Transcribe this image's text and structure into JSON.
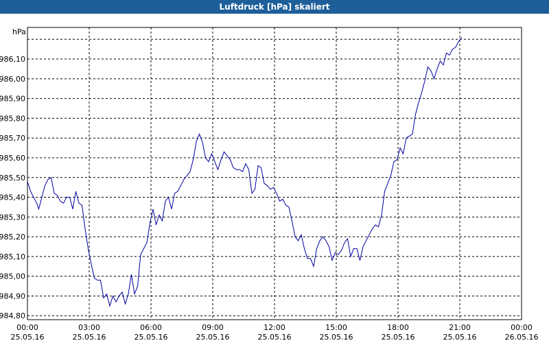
{
  "window": {
    "title": "Luftdruck [hPa] skaliert"
  },
  "colors": {
    "titlebar": "#1e5f9a",
    "line": "#0000a0",
    "grid": "#000000"
  },
  "chart_data": {
    "type": "line",
    "title": "Luftdruck [hPa] skaliert",
    "ylabel": "hPa",
    "xlabel": "",
    "ylim": [
      984.78,
      986.26
    ],
    "xlim": [
      0,
      24
    ],
    "grid": true,
    "y_ticks": [
      984.8,
      984.9,
      985.0,
      985.1,
      985.2,
      985.3,
      985.4,
      985.5,
      985.6,
      985.7,
      985.8,
      985.9,
      986.0,
      986.1
    ],
    "y_tick_labels": [
      "984,80",
      "984,90",
      "985,00",
      "985,10",
      "985,20",
      "985,30",
      "985,40",
      "985,50",
      "985,60",
      "985,70",
      "985,80",
      "985,90",
      "986,00",
      "986,10"
    ],
    "x_ticks": [
      {
        "x": 0,
        "time": "00:00",
        "date": "25.05.16"
      },
      {
        "x": 3,
        "time": "03:00",
        "date": "25.05.16"
      },
      {
        "x": 6,
        "time": "06:00",
        "date": "25.05.16"
      },
      {
        "x": 9,
        "time": "09:00",
        "date": "25.05.16"
      },
      {
        "x": 12,
        "time": "12:00",
        "date": "25.05.16"
      },
      {
        "x": 15,
        "time": "15:00",
        "date": "25.05.16"
      },
      {
        "x": 18,
        "time": "18:00",
        "date": "25.05.16"
      },
      {
        "x": 21,
        "time": "21:00",
        "date": "25.05.16"
      },
      {
        "x": 24,
        "time": "00:00",
        "date": "26.05.16"
      }
    ],
    "series": [
      {
        "points": [
          [
            0.0,
            985.48
          ],
          [
            0.15,
            985.43
          ],
          [
            0.3,
            985.4
          ],
          [
            0.45,
            985.37
          ],
          [
            0.55,
            985.34
          ],
          [
            0.7,
            985.4
          ],
          [
            0.85,
            985.46
          ],
          [
            1.0,
            985.49
          ],
          [
            1.15,
            985.5
          ],
          [
            1.3,
            985.42
          ],
          [
            1.45,
            985.41
          ],
          [
            1.6,
            985.38
          ],
          [
            1.75,
            985.37
          ],
          [
            1.9,
            985.4
          ],
          [
            2.05,
            985.4
          ],
          [
            2.2,
            985.34
          ],
          [
            2.35,
            985.43
          ],
          [
            2.5,
            985.37
          ],
          [
            2.65,
            985.36
          ],
          [
            2.8,
            985.24
          ],
          [
            2.95,
            985.14
          ],
          [
            3.1,
            985.06
          ],
          [
            3.25,
            984.99
          ],
          [
            3.4,
            984.98
          ],
          [
            3.55,
            984.98
          ],
          [
            3.7,
            984.89
          ],
          [
            3.85,
            984.91
          ],
          [
            4.0,
            984.85
          ],
          [
            4.15,
            984.9
          ],
          [
            4.3,
            984.87
          ],
          [
            4.45,
            984.9
          ],
          [
            4.6,
            984.92
          ],
          [
            4.75,
            984.86
          ],
          [
            4.9,
            984.91
          ],
          [
            5.05,
            985.01
          ],
          [
            5.2,
            984.91
          ],
          [
            5.35,
            984.95
          ],
          [
            5.5,
            985.11
          ],
          [
            5.65,
            985.14
          ],
          [
            5.8,
            985.17
          ],
          [
            5.95,
            985.27
          ],
          [
            6.1,
            985.34
          ],
          [
            6.25,
            985.26
          ],
          [
            6.4,
            985.31
          ],
          [
            6.55,
            985.28
          ],
          [
            6.7,
            985.38
          ],
          [
            6.85,
            985.4
          ],
          [
            7.0,
            985.34
          ],
          [
            7.15,
            985.42
          ],
          [
            7.3,
            985.43
          ],
          [
            7.45,
            985.46
          ],
          [
            7.6,
            985.49
          ],
          [
            7.75,
            985.51
          ],
          [
            7.9,
            985.53
          ],
          [
            8.05,
            985.59
          ],
          [
            8.2,
            985.68
          ],
          [
            8.35,
            985.72
          ],
          [
            8.5,
            985.68
          ],
          [
            8.65,
            985.6
          ],
          [
            8.8,
            985.58
          ],
          [
            8.95,
            985.62
          ],
          [
            9.1,
            985.58
          ],
          [
            9.25,
            985.54
          ],
          [
            9.4,
            985.59
          ],
          [
            9.55,
            985.63
          ],
          [
            9.7,
            985.61
          ],
          [
            9.85,
            985.59
          ],
          [
            10.0,
            985.55
          ],
          [
            10.15,
            985.54
          ],
          [
            10.3,
            985.54
          ],
          [
            10.45,
            985.53
          ],
          [
            10.6,
            985.57
          ],
          [
            10.75,
            985.54
          ],
          [
            10.9,
            985.42
          ],
          [
            11.05,
            985.44
          ],
          [
            11.2,
            985.56
          ],
          [
            11.35,
            985.55
          ],
          [
            11.5,
            985.47
          ],
          [
            11.65,
            985.46
          ],
          [
            11.8,
            985.44
          ],
          [
            11.95,
            985.45
          ],
          [
            12.1,
            985.42
          ],
          [
            12.25,
            985.38
          ],
          [
            12.4,
            985.39
          ],
          [
            12.55,
            985.36
          ],
          [
            12.7,
            985.35
          ],
          [
            12.85,
            985.28
          ],
          [
            13.0,
            985.2
          ],
          [
            13.15,
            985.18
          ],
          [
            13.3,
            985.21
          ],
          [
            13.45,
            985.14
          ],
          [
            13.6,
            985.09
          ],
          [
            13.75,
            985.09
          ],
          [
            13.9,
            985.05
          ],
          [
            14.05,
            985.14
          ],
          [
            14.2,
            985.18
          ],
          [
            14.35,
            985.2
          ],
          [
            14.5,
            985.18
          ],
          [
            14.65,
            985.15
          ],
          [
            14.8,
            985.08
          ],
          [
            14.95,
            985.12
          ],
          [
            15.1,
            985.11
          ],
          [
            15.25,
            985.13
          ],
          [
            15.4,
            985.17
          ],
          [
            15.55,
            985.19
          ],
          [
            15.7,
            985.1
          ],
          [
            15.85,
            985.14
          ],
          [
            16.0,
            985.14
          ],
          [
            16.15,
            985.08
          ],
          [
            16.3,
            985.15
          ],
          [
            16.45,
            985.18
          ],
          [
            16.6,
            985.21
          ],
          [
            16.75,
            985.24
          ],
          [
            16.9,
            985.26
          ],
          [
            17.05,
            985.25
          ],
          [
            17.2,
            985.31
          ],
          [
            17.35,
            985.43
          ],
          [
            17.5,
            985.47
          ],
          [
            17.65,
            985.51
          ],
          [
            17.8,
            985.58
          ],
          [
            17.95,
            985.59
          ],
          [
            18.1,
            985.65
          ],
          [
            18.25,
            985.62
          ],
          [
            18.4,
            985.7
          ],
          [
            18.55,
            985.71
          ],
          [
            18.7,
            985.72
          ],
          [
            18.85,
            985.82
          ],
          [
            19.0,
            985.88
          ],
          [
            19.15,
            985.93
          ],
          [
            19.3,
            985.99
          ],
          [
            19.45,
            986.06
          ],
          [
            19.6,
            986.04
          ],
          [
            19.75,
            986.0
          ],
          [
            19.9,
            986.05
          ],
          [
            20.05,
            986.09
          ],
          [
            20.2,
            986.07
          ],
          [
            20.35,
            986.13
          ],
          [
            20.5,
            986.12
          ],
          [
            20.65,
            986.15
          ],
          [
            20.8,
            986.16
          ],
          [
            20.95,
            986.19
          ],
          [
            21.1,
            986.21
          ]
        ]
      }
    ]
  }
}
